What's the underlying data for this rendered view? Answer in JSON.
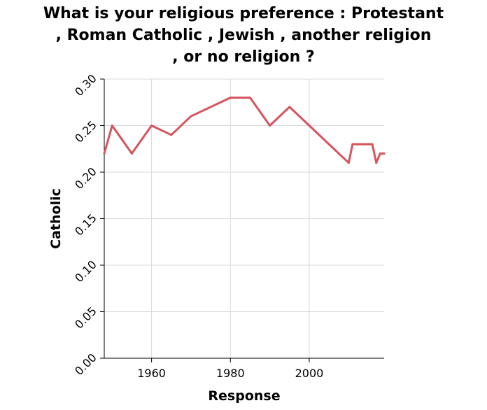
{
  "chart_data": {
    "type": "line",
    "title": "What is your religious preference : Protestant\n, Roman Catholic , Jewish , another religion\n, or no religion ?",
    "xlabel": "Response",
    "ylabel": "Catholic",
    "xlim": [
      1948,
      2019
    ],
    "ylim": [
      0,
      0.3
    ],
    "xticks": [
      1960,
      1980,
      2000
    ],
    "yticks": [
      0.0,
      0.05,
      0.1,
      0.15,
      0.2,
      0.25,
      0.3
    ],
    "ytick_labels": [
      "0.00",
      "0.05",
      "0.10",
      "0.15",
      "0.20",
      "0.25",
      "0.30"
    ],
    "grid": true,
    "series": [
      {
        "color": "#d6545e",
        "x": [
          1948,
          1950,
          1955,
          1960,
          1965,
          1970,
          1980,
          1985,
          1990,
          1995,
          2000,
          2005,
          2010,
          2011,
          2012,
          2013,
          2014,
          2015,
          2016,
          2017,
          2018,
          2019
        ],
        "y": [
          0.22,
          0.25,
          0.22,
          0.25,
          0.24,
          0.26,
          0.28,
          0.28,
          0.25,
          0.27,
          0.25,
          0.23,
          0.21,
          0.23,
          0.23,
          0.23,
          0.23,
          0.23,
          0.23,
          0.21,
          0.22,
          0.22
        ]
      }
    ]
  }
}
